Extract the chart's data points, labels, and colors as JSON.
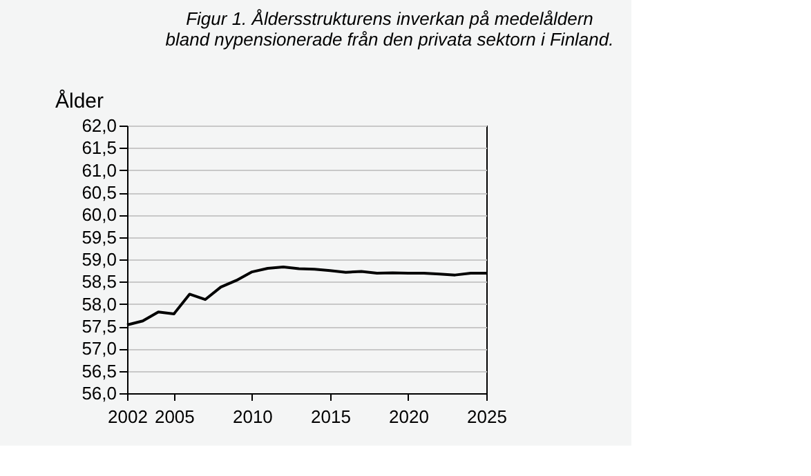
{
  "chart_data": {
    "type": "line",
    "title": [
      "Figur 1. Åldersstrukturens inverkan på medelåldern",
      "bland nypensionerade från den privata sektorn i Finland."
    ],
    "ylabel": "Ålder",
    "x": [
      2002,
      2003,
      2004,
      2005,
      2006,
      2007,
      2008,
      2009,
      2010,
      2011,
      2012,
      2013,
      2014,
      2015,
      2016,
      2017,
      2018,
      2019,
      2020,
      2021,
      2022,
      2023,
      2024,
      2025
    ],
    "series": [
      {
        "color": "#000000",
        "values": [
          57.53,
          57.62,
          57.82,
          57.78,
          58.22,
          58.1,
          58.38,
          58.53,
          58.72,
          58.8,
          58.83,
          58.79,
          58.78,
          58.75,
          58.71,
          58.73,
          58.69,
          58.7,
          58.69,
          58.69,
          58.67,
          58.65,
          58.69,
          58.69
        ]
      }
    ],
    "xlim": [
      2002,
      2025
    ],
    "xticks": [
      2002,
      2005,
      2010,
      2015,
      2020,
      2025
    ],
    "ylim": [
      56,
      62
    ],
    "yticks": [
      {
        "value": 56,
        "label": "56,0"
      },
      {
        "value": 56.5,
        "label": "56,5"
      },
      {
        "value": 57,
        "label": "57,0"
      },
      {
        "value": 57.5,
        "label": "57,5"
      },
      {
        "value": 58,
        "label": "58,0"
      },
      {
        "value": 58.5,
        "label": "58,5"
      },
      {
        "value": 59,
        "label": "59,0"
      },
      {
        "value": 59.5,
        "label": "59,5"
      },
      {
        "value": 60,
        "label": "60,0"
      },
      {
        "value": 60.5,
        "label": "60,5"
      },
      {
        "value": 61,
        "label": "61,0"
      },
      {
        "value": 61.5,
        "label": "61,5"
      },
      {
        "value": 62,
        "label": "62,0"
      }
    ],
    "grid": "y",
    "legend": false,
    "marker": "none",
    "line_style": "solid"
  }
}
